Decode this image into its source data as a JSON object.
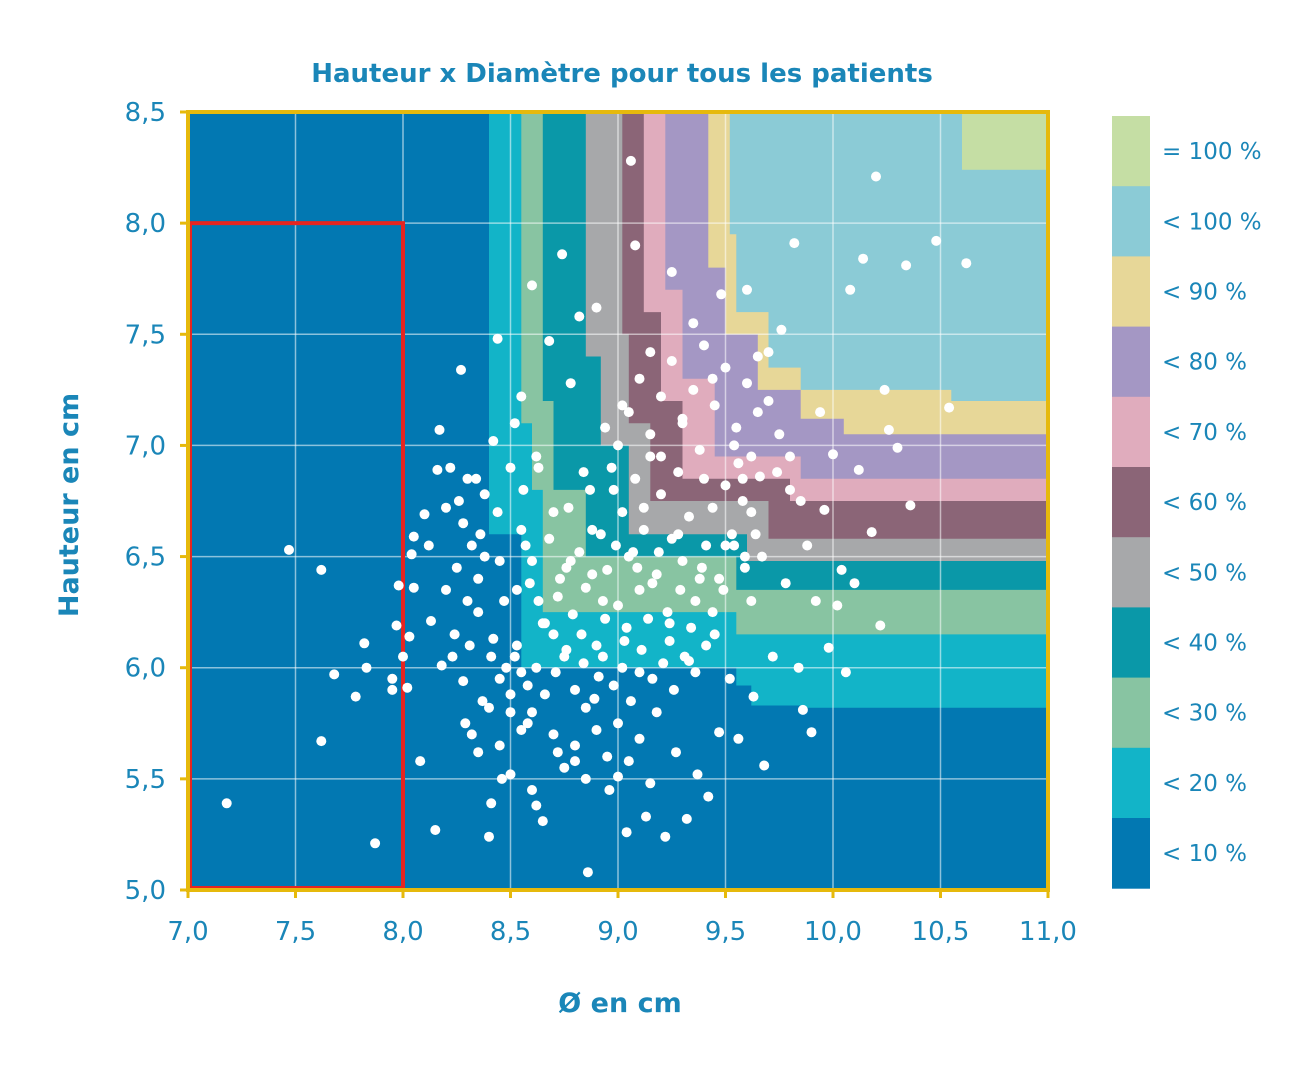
{
  "chart_data": {
    "type": "scatter",
    "title": "Hauteur x Diamètre pour tous les patients",
    "xlabel": "Ø en cm",
    "ylabel": "Hauteur en cm",
    "xlim": [
      7.0,
      11.0
    ],
    "ylim": [
      5.0,
      8.5
    ],
    "x_ticks": [
      "7,0",
      "7,5",
      "8,0",
      "8,5",
      "9,0",
      "9,5",
      "10,0",
      "10,5",
      "11,0"
    ],
    "y_ticks": [
      "5,0",
      "5,5",
      "6,0",
      "6,5",
      "7,0",
      "7,5",
      "8,0",
      "8,5"
    ],
    "grid": true,
    "legend_position": "right",
    "legend": [
      {
        "label": "= 100 %",
        "color": "#c5dea4"
      },
      {
        "label": "< 100 %",
        "color": "#8bcbd6"
      },
      {
        "label": "< 90 %",
        "color": "#e7d798"
      },
      {
        "label": "< 80 %",
        "color": "#a497c4"
      },
      {
        "label": "< 70 %",
        "color": "#e0acbd"
      },
      {
        "label": "< 60 %",
        "color": "#8b6577"
      },
      {
        "label": "< 50 %",
        "color": "#a7a8aa"
      },
      {
        "label": "< 40 %",
        "color": "#0a98a8"
      },
      {
        "label": "< 30 %",
        "color": "#88c4a2"
      },
      {
        "label": "< 20 %",
        "color": "#12b4c8"
      },
      {
        "label": "< 10 %",
        "color": "#0278b2"
      }
    ],
    "highlight_box": {
      "x": [
        7.0,
        8.0
      ],
      "y": [
        5.0,
        8.0
      ],
      "color": "#e52521"
    },
    "frame_color": "#e6b90c",
    "point_color": "#ffffff",
    "points": [
      [
        7.18,
        5.39
      ],
      [
        7.47,
        6.53
      ],
      [
        7.62,
        6.44
      ],
      [
        7.68,
        5.97
      ],
      [
        7.62,
        5.67
      ],
      [
        7.78,
        5.87
      ],
      [
        7.82,
        6.11
      ],
      [
        7.83,
        6.0
      ],
      [
        7.87,
        5.21
      ],
      [
        7.95,
        5.95
      ],
      [
        7.95,
        5.9
      ],
      [
        7.97,
        6.19
      ],
      [
        7.98,
        6.37
      ],
      [
        8.0,
        6.05
      ],
      [
        8.02,
        5.91
      ],
      [
        8.03,
        6.14
      ],
      [
        8.04,
        6.51
      ],
      [
        8.05,
        6.36
      ],
      [
        8.05,
        6.59
      ],
      [
        8.08,
        5.58
      ],
      [
        8.1,
        6.69
      ],
      [
        8.12,
        6.55
      ],
      [
        8.13,
        6.21
      ],
      [
        8.15,
        5.27
      ],
      [
        8.16,
        6.89
      ],
      [
        8.17,
        7.07
      ],
      [
        8.18,
        6.01
      ],
      [
        8.2,
        6.72
      ],
      [
        8.22,
        6.9
      ],
      [
        8.24,
        6.15
      ],
      [
        8.27,
        7.34
      ],
      [
        8.28,
        5.94
      ],
      [
        8.3,
        6.3
      ],
      [
        8.3,
        6.85
      ],
      [
        8.32,
        5.7
      ],
      [
        8.35,
        6.4
      ],
      [
        8.36,
        6.6
      ],
      [
        8.38,
        6.78
      ],
      [
        8.4,
        5.24
      ],
      [
        8.41,
        5.39
      ],
      [
        8.42,
        6.13
      ],
      [
        8.42,
        7.02
      ],
      [
        8.44,
        7.48
      ],
      [
        8.45,
        6.48
      ],
      [
        8.46,
        5.5
      ],
      [
        8.48,
        6.0
      ],
      [
        8.5,
        5.8
      ],
      [
        8.52,
        7.1
      ],
      [
        8.53,
        6.35
      ],
      [
        8.55,
        7.22
      ],
      [
        8.57,
        6.55
      ],
      [
        8.58,
        5.75
      ],
      [
        8.6,
        7.72
      ],
      [
        8.62,
        5.38
      ],
      [
        8.63,
        6.9
      ],
      [
        8.65,
        5.31
      ],
      [
        8.66,
        6.2
      ],
      [
        8.68,
        7.47
      ],
      [
        8.7,
        6.7
      ],
      [
        8.72,
        5.62
      ],
      [
        8.74,
        7.86
      ],
      [
        8.75,
        6.05
      ],
      [
        8.76,
        6.45
      ],
      [
        8.78,
        7.28
      ],
      [
        8.8,
        5.58
      ],
      [
        8.82,
        7.58
      ],
      [
        8.84,
        6.88
      ],
      [
        8.85,
        5.82
      ],
      [
        8.86,
        5.08
      ],
      [
        8.88,
        6.62
      ],
      [
        8.9,
        7.62
      ],
      [
        8.91,
        5.96
      ],
      [
        8.93,
        6.3
      ],
      [
        8.94,
        7.08
      ],
      [
        8.96,
        5.45
      ],
      [
        8.98,
        6.8
      ],
      [
        9.0,
        5.51
      ],
      [
        9.02,
        7.18
      ],
      [
        9.03,
        6.12
      ],
      [
        9.04,
        5.26
      ],
      [
        9.06,
        8.28
      ],
      [
        9.07,
        6.52
      ],
      [
        9.08,
        7.9
      ],
      [
        9.1,
        5.98
      ],
      [
        9.12,
        6.72
      ],
      [
        9.13,
        5.33
      ],
      [
        9.15,
        7.42
      ],
      [
        9.16,
        6.38
      ],
      [
        9.18,
        5.8
      ],
      [
        9.2,
        6.95
      ],
      [
        9.22,
        5.24
      ],
      [
        9.24,
        6.2
      ],
      [
        9.25,
        7.78
      ],
      [
        9.27,
        5.62
      ],
      [
        9.28,
        6.6
      ],
      [
        9.3,
        7.1
      ],
      [
        9.32,
        5.32
      ],
      [
        9.33,
        6.03
      ],
      [
        9.35,
        7.55
      ],
      [
        9.37,
        5.52
      ],
      [
        9.38,
        6.4
      ],
      [
        9.4,
        6.85
      ],
      [
        9.42,
        5.42
      ],
      [
        9.44,
        7.3
      ],
      [
        9.45,
        6.15
      ],
      [
        9.47,
        5.71
      ],
      [
        9.48,
        7.68
      ],
      [
        9.5,
        6.55
      ],
      [
        9.52,
        5.95
      ],
      [
        9.54,
        7.0
      ],
      [
        9.56,
        5.68
      ],
      [
        9.58,
        6.75
      ],
      [
        9.6,
        7.7
      ],
      [
        9.62,
        6.3
      ],
      [
        9.63,
        5.87
      ],
      [
        9.65,
        7.4
      ],
      [
        9.67,
        6.5
      ],
      [
        9.68,
        5.56
      ],
      [
        9.7,
        7.2
      ],
      [
        9.72,
        6.05
      ],
      [
        9.74,
        6.88
      ],
      [
        9.76,
        7.52
      ],
      [
        9.78,
        6.38
      ],
      [
        9.8,
        6.8
      ],
      [
        9.82,
        7.91
      ],
      [
        9.84,
        6.0
      ],
      [
        9.86,
        5.81
      ],
      [
        9.88,
        6.55
      ],
      [
        9.9,
        5.71
      ],
      [
        9.92,
        6.3
      ],
      [
        9.94,
        7.15
      ],
      [
        9.96,
        6.71
      ],
      [
        9.98,
        6.09
      ],
      [
        10.0,
        6.96
      ],
      [
        10.02,
        6.28
      ],
      [
        10.04,
        6.44
      ],
      [
        10.06,
        5.98
      ],
      [
        10.08,
        7.7
      ],
      [
        10.1,
        6.38
      ],
      [
        10.12,
        6.89
      ],
      [
        10.14,
        7.84
      ],
      [
        10.18,
        6.61
      ],
      [
        10.2,
        8.21
      ],
      [
        10.22,
        6.19
      ],
      [
        10.24,
        7.25
      ],
      [
        10.26,
        7.07
      ],
      [
        10.3,
        6.99
      ],
      [
        10.34,
        7.81
      ],
      [
        10.36,
        6.73
      ],
      [
        10.48,
        7.92
      ],
      [
        10.54,
        7.17
      ],
      [
        10.62,
        7.82
      ],
      [
        8.55,
        6.62
      ],
      [
        8.6,
        6.48
      ],
      [
        8.63,
        6.3
      ],
      [
        8.68,
        6.58
      ],
      [
        8.7,
        6.15
      ],
      [
        8.73,
        6.4
      ],
      [
        8.77,
        6.72
      ],
      [
        8.79,
        6.24
      ],
      [
        8.82,
        6.52
      ],
      [
        8.85,
        6.36
      ],
      [
        8.87,
        6.8
      ],
      [
        8.9,
        6.1
      ],
      [
        8.92,
        6.6
      ],
      [
        8.95,
        6.44
      ],
      [
        8.97,
        6.9
      ],
      [
        9.0,
        6.28
      ],
      [
        9.02,
        6.7
      ],
      [
        9.05,
        6.5
      ],
      [
        9.08,
        6.85
      ],
      [
        9.1,
        6.35
      ],
      [
        9.12,
        6.62
      ],
      [
        9.15,
        6.95
      ],
      [
        9.18,
        6.42
      ],
      [
        9.2,
        6.78
      ],
      [
        9.23,
        6.25
      ],
      [
        9.25,
        6.58
      ],
      [
        9.28,
        6.88
      ],
      [
        9.3,
        6.48
      ],
      [
        9.33,
        6.68
      ],
      [
        9.36,
        6.3
      ],
      [
        9.38,
        6.98
      ],
      [
        9.41,
        6.55
      ],
      [
        9.44,
        6.72
      ],
      [
        9.47,
        6.4
      ],
      [
        9.5,
        6.82
      ],
      [
        9.53,
        6.6
      ],
      [
        9.56,
        6.92
      ],
      [
        9.59,
        6.5
      ],
      [
        9.62,
        6.7
      ],
      [
        9.66,
        6.86
      ],
      [
        8.52,
        6.05
      ],
      [
        8.58,
        5.92
      ],
      [
        8.62,
        6.0
      ],
      [
        8.66,
        5.88
      ],
      [
        8.71,
        5.98
      ],
      [
        8.76,
        6.08
      ],
      [
        8.8,
        5.9
      ],
      [
        8.84,
        6.02
      ],
      [
        8.89,
        5.86
      ],
      [
        8.93,
        6.05
      ],
      [
        8.98,
        5.92
      ],
      [
        9.02,
        6.0
      ],
      [
        9.06,
        5.85
      ],
      [
        9.11,
        6.08
      ],
      [
        9.16,
        5.95
      ],
      [
        9.21,
        6.02
      ],
      [
        9.26,
        5.9
      ],
      [
        9.31,
        6.05
      ],
      [
        9.36,
        5.98
      ],
      [
        9.41,
        6.1
      ],
      [
        8.35,
        6.25
      ],
      [
        8.38,
        6.5
      ],
      [
        8.41,
        6.05
      ],
      [
        8.44,
        6.7
      ],
      [
        8.47,
        6.3
      ],
      [
        8.5,
        6.9
      ],
      [
        8.53,
        6.1
      ],
      [
        8.56,
        6.8
      ],
      [
        8.59,
        6.38
      ],
      [
        8.62,
        6.95
      ],
      [
        8.25,
        6.45
      ],
      [
        8.28,
        6.65
      ],
      [
        8.31,
        6.1
      ],
      [
        8.34,
        6.85
      ],
      [
        8.37,
        5.85
      ],
      [
        8.2,
        6.35
      ],
      [
        8.23,
        6.05
      ],
      [
        8.26,
        6.75
      ],
      [
        8.29,
        5.75
      ],
      [
        8.32,
        6.55
      ],
      [
        9.0,
        7.0
      ],
      [
        9.05,
        7.15
      ],
      [
        9.1,
        7.3
      ],
      [
        9.15,
        7.05
      ],
      [
        9.2,
        7.22
      ],
      [
        9.25,
        7.38
      ],
      [
        9.3,
        7.12
      ],
      [
        9.35,
        7.25
      ],
      [
        9.4,
        7.45
      ],
      [
        9.45,
        7.18
      ],
      [
        9.5,
        7.35
      ],
      [
        9.55,
        7.08
      ],
      [
        9.6,
        7.28
      ],
      [
        9.65,
        7.15
      ],
      [
        9.7,
        7.42
      ],
      [
        9.75,
        7.05
      ],
      [
        9.8,
        6.95
      ],
      [
        9.85,
        6.75
      ],
      [
        9.58,
        6.85
      ],
      [
        9.62,
        6.95
      ],
      [
        8.7,
        5.7
      ],
      [
        8.75,
        5.55
      ],
      [
        8.8,
        5.65
      ],
      [
        8.85,
        5.5
      ],
      [
        8.9,
        5.72
      ],
      [
        8.95,
        5.6
      ],
      [
        9.0,
        5.75
      ],
      [
        9.05,
        5.58
      ],
      [
        9.1,
        5.68
      ],
      [
        9.15,
        5.48
      ],
      [
        8.45,
        5.65
      ],
      [
        8.5,
        5.52
      ],
      [
        8.55,
        5.72
      ],
      [
        8.6,
        5.45
      ],
      [
        8.4,
        5.82
      ],
      [
        8.35,
        5.62
      ],
      [
        8.45,
        5.95
      ],
      [
        8.5,
        5.88
      ],
      [
        8.55,
        5.98
      ],
      [
        8.6,
        5.8
      ],
      [
        8.65,
        6.2
      ],
      [
        8.72,
        6.32
      ],
      [
        8.78,
        6.48
      ],
      [
        8.83,
        6.15
      ],
      [
        8.88,
        6.42
      ],
      [
        8.94,
        6.22
      ],
      [
        8.99,
        6.55
      ],
      [
        9.04,
        6.18
      ],
      [
        9.09,
        6.45
      ],
      [
        9.14,
        6.22
      ],
      [
        9.19,
        6.52
      ],
      [
        9.24,
        6.12
      ],
      [
        9.29,
        6.35
      ],
      [
        9.34,
        6.18
      ],
      [
        9.39,
        6.45
      ],
      [
        9.44,
        6.25
      ],
      [
        9.49,
        6.35
      ],
      [
        9.54,
        6.55
      ],
      [
        9.59,
        6.45
      ],
      [
        9.64,
        6.6
      ]
    ]
  }
}
